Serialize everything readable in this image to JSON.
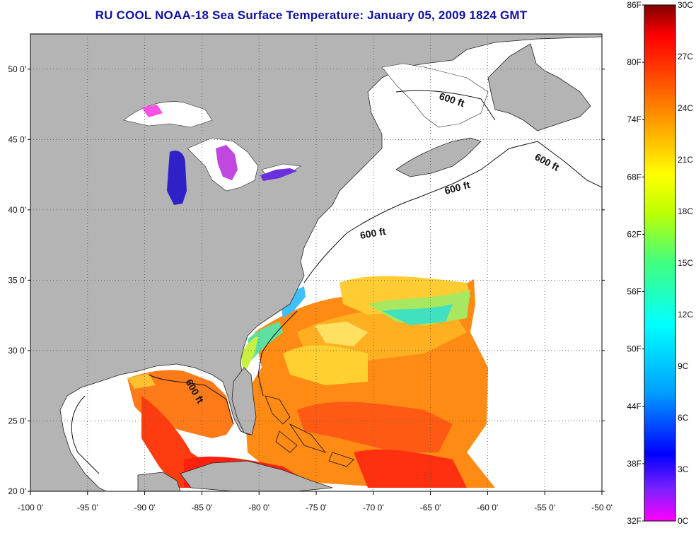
{
  "title": "RU COOL  NOAA-18  Sea Surface Temperature:  January 05, 2009 1824 GMT",
  "map": {
    "lon_range": [
      -100,
      -50
    ],
    "lat_range": [
      20,
      52.5
    ],
    "lon_ticks": [
      "-100 0'",
      "-95 0'",
      "-90 0'",
      "-85 0'",
      "-80 0'",
      "-75 0'",
      "-70 0'",
      "-65 0'",
      "-60 0'",
      "-55 0'",
      "-50 0'"
    ],
    "lat_ticks": [
      "20 0'",
      "25 0'",
      "30 0'",
      "35 0'",
      "40 0'",
      "45 0'",
      "50 0'"
    ],
    "gridlines": "dotted",
    "land_color": "#b4b4b4",
    "no_data_color": "#ffffff",
    "contour_labels": [
      "600 ft",
      "600 ft",
      "600 ft",
      "600 ft",
      "600 ft"
    ]
  },
  "colorbar": {
    "fahrenheit_labels": [
      "86F",
      "80F",
      "74F",
      "68F",
      "62F",
      "56F",
      "50F",
      "44F",
      "38F",
      "32F"
    ],
    "celsius_labels": [
      "30C",
      "27C",
      "24C",
      "21C",
      "18C",
      "15C",
      "12C",
      "9C",
      "6C",
      "3C",
      "0C"
    ],
    "range_c": [
      0,
      30
    ],
    "colors": [
      "#ff00ff",
      "#8020ff",
      "#0000ff",
      "#00a0ff",
      "#00ffff",
      "#40ff80",
      "#c0ff00",
      "#ffff00",
      "#ffa000",
      "#ff4000",
      "#ff0000",
      "#800000"
    ]
  }
}
